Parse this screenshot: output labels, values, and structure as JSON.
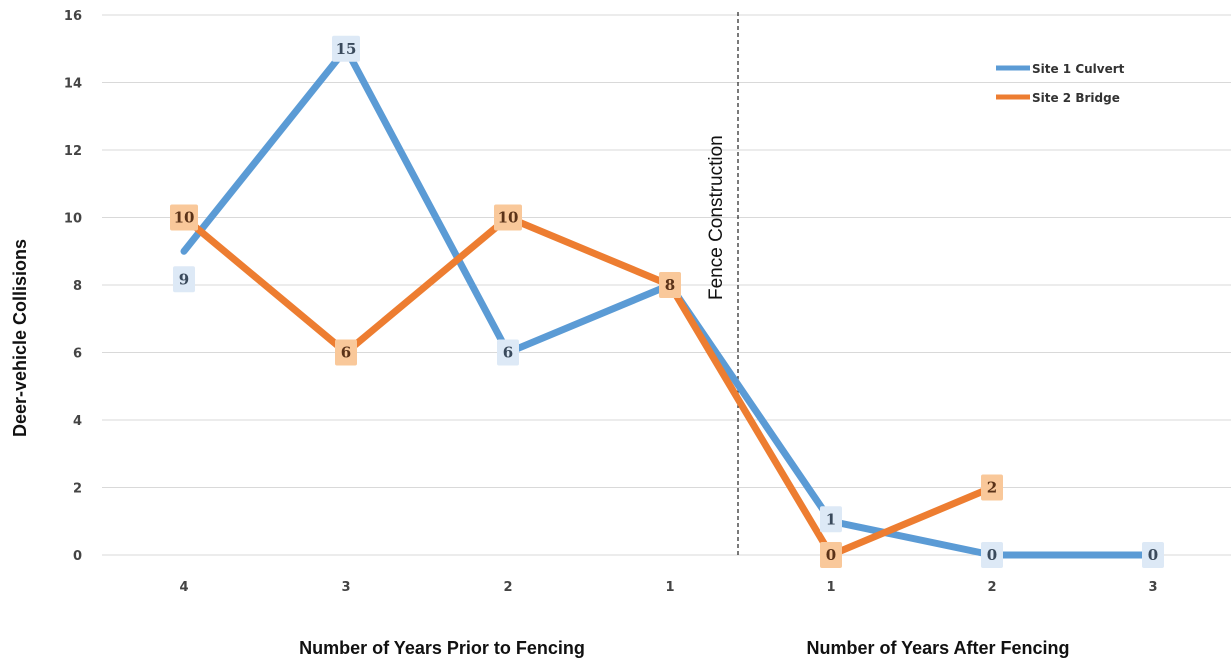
{
  "chart_data": {
    "type": "line",
    "categories": [
      "4",
      "3",
      "2",
      "1",
      "1",
      "2",
      "3"
    ],
    "series": [
      {
        "name": "Site 1 Culvert",
        "color": "#5b9bd5",
        "values": [
          9,
          15,
          6,
          8,
          1,
          0,
          0
        ]
      },
      {
        "name": "Site 2 Bridge",
        "color": "#ed7d31",
        "values": [
          10,
          6,
          10,
          8,
          0,
          2,
          null
        ]
      }
    ],
    "ylabel": "Deer-vehicle Collisions",
    "xlabel_prior": "Number of Years Prior to Fencing",
    "xlabel_after": "Number of Years After Fencing",
    "annotation": "Fence Construction",
    "ylim": [
      0,
      16
    ],
    "yticks": [
      0,
      2,
      4,
      6,
      8,
      10,
      12,
      14,
      16
    ],
    "grid": true,
    "legend_position": "top-right"
  }
}
